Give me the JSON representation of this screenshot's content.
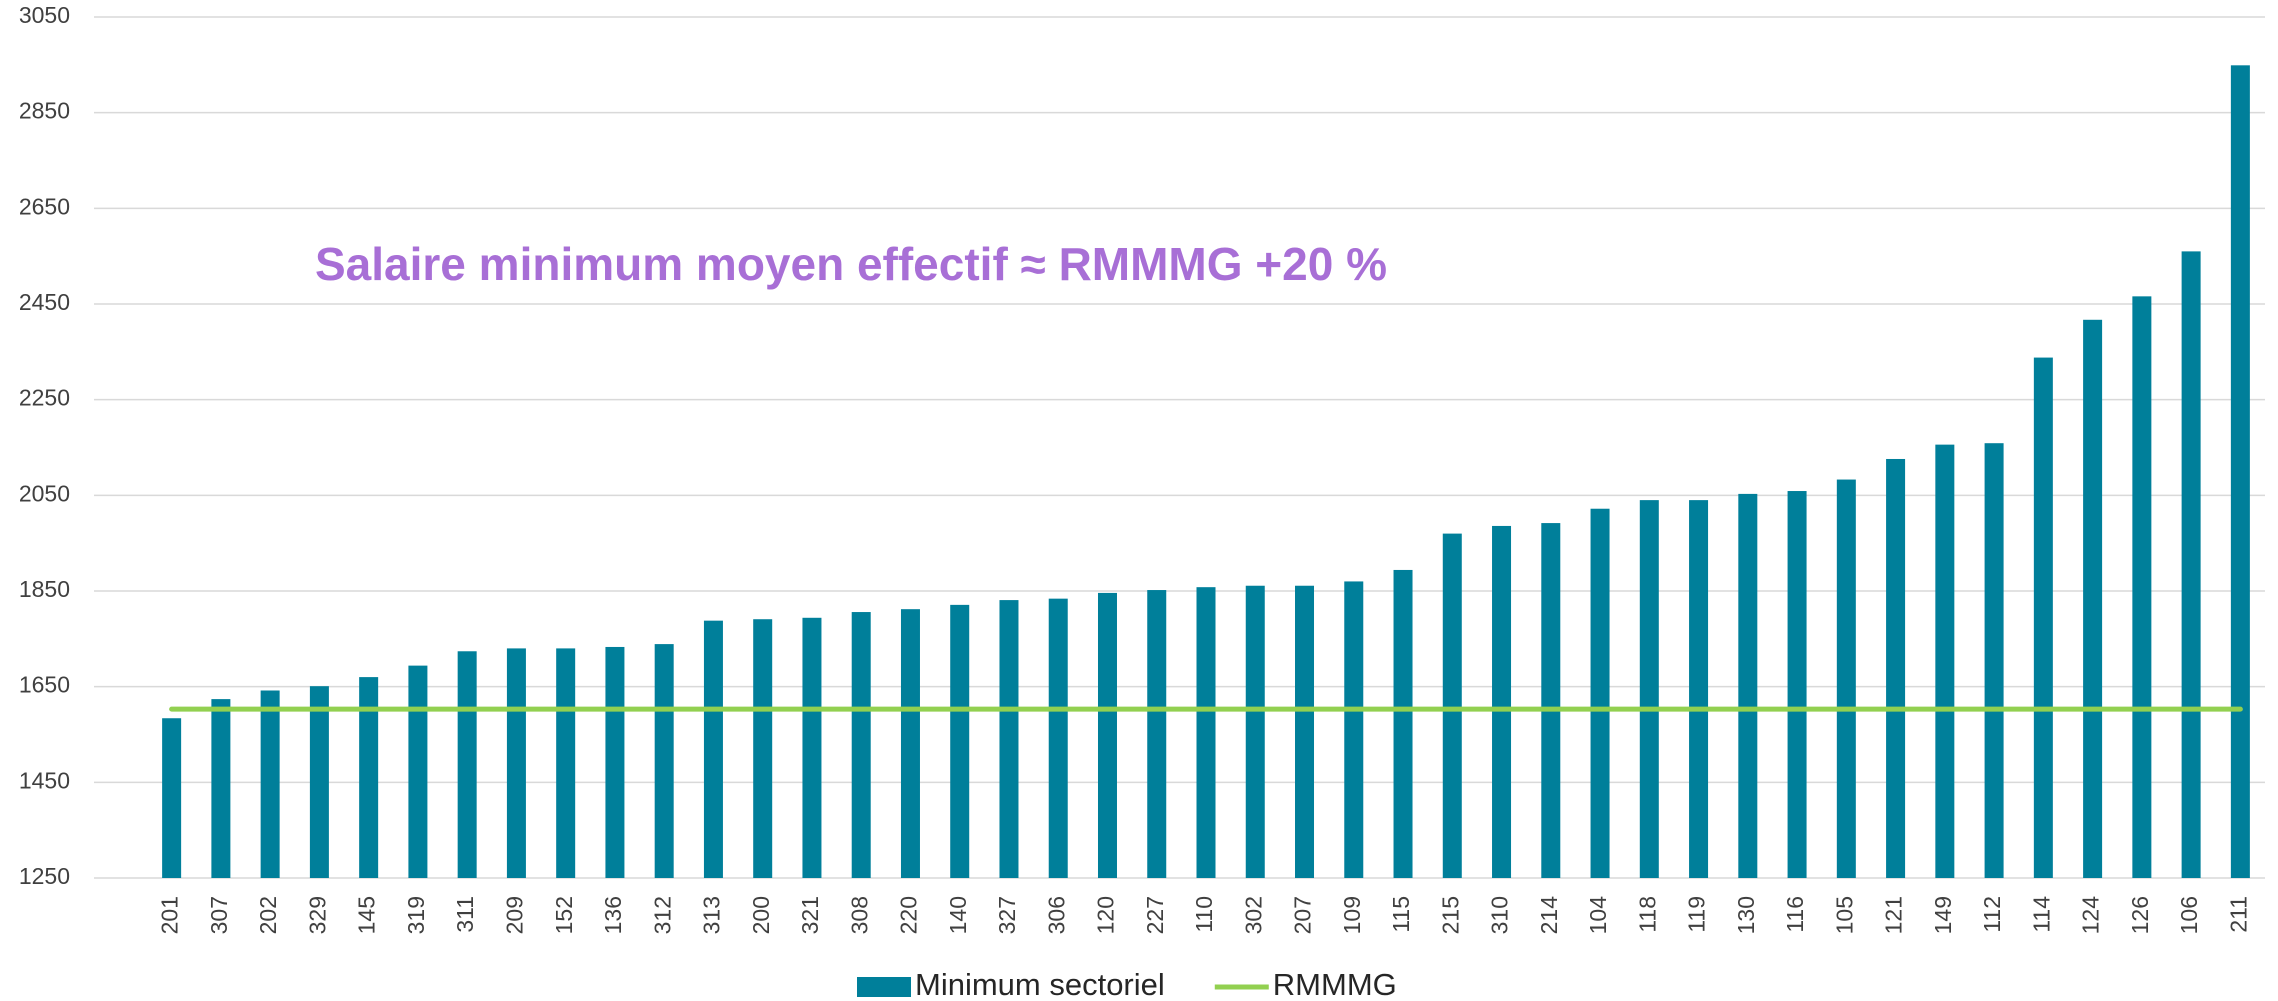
{
  "chart_data": {
    "type": "bar_line",
    "annotation": "Salaire minimum moyen effectif ≈ RMMMG +20 %",
    "categories": [
      "201",
      "307",
      "202",
      "329",
      "145",
      "319",
      "311",
      "209",
      "152",
      "136",
      "312",
      "313",
      "200",
      "321",
      "308",
      "220",
      "140",
      "327",
      "306",
      "120",
      "227",
      "110",
      "302",
      "207",
      "109",
      "115",
      "215",
      "310",
      "214",
      "104",
      "118",
      "119",
      "130",
      "116",
      "105",
      "121",
      "149",
      "112",
      "114",
      "124",
      "126",
      "106",
      "211"
    ],
    "series": [
      {
        "name": "Minimum sectoriel",
        "type": "bar",
        "color": "#007f9a",
        "values": [
          1584,
          1624,
          1642,
          1651,
          1670,
          1694,
          1724,
          1730,
          1730,
          1733,
          1739,
          1788,
          1791,
          1794,
          1806,
          1812,
          1821,
          1831,
          1834,
          1846,
          1852,
          1858,
          1861,
          1861,
          1870,
          1894,
          1970,
          1986,
          1992,
          2022,
          2040,
          2040,
          2053,
          2059,
          2083,
          2126,
          2156,
          2159,
          2338,
          2417,
          2466,
          2560,
          2949
        ]
      },
      {
        "name": "RMMMG",
        "type": "line",
        "color": "#92d050",
        "values": [
          1603,
          1603,
          1603,
          1603,
          1603,
          1603,
          1603,
          1603,
          1603,
          1603,
          1603,
          1603,
          1603,
          1603,
          1603,
          1603,
          1603,
          1603,
          1603,
          1603,
          1603,
          1603,
          1603,
          1603,
          1603,
          1603,
          1603,
          1603,
          1603,
          1603,
          1603,
          1603,
          1603,
          1603,
          1603,
          1603,
          1603,
          1603,
          1603,
          1603,
          1603,
          1603,
          1603
        ]
      }
    ],
    "ylim": [
      1250,
      3050
    ],
    "yticks": [
      1250,
      1450,
      1650,
      1850,
      2050,
      2250,
      2450,
      2650,
      2850,
      3050
    ],
    "grid": true,
    "legend": "bottom"
  }
}
